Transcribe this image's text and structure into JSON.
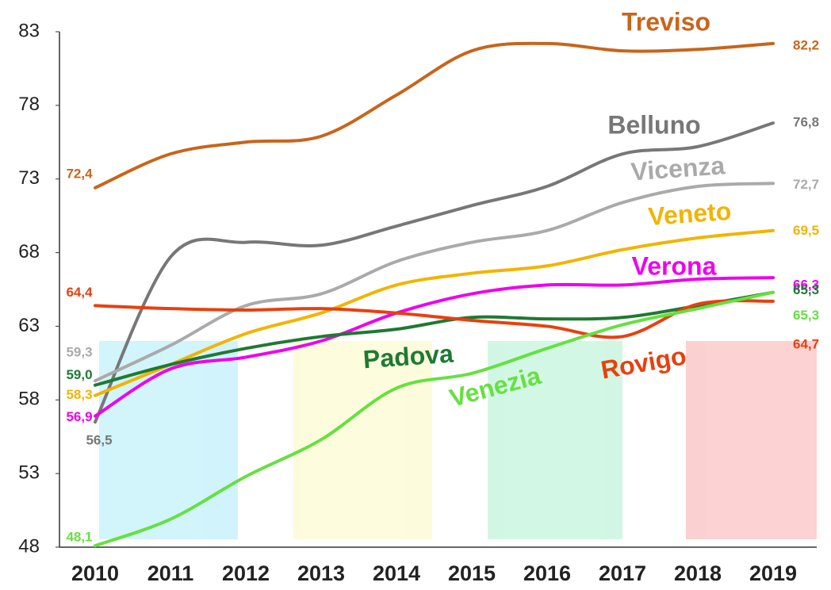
{
  "chart_data": {
    "type": "line",
    "categories": [
      "2010",
      "2011",
      "2012",
      "2013",
      "2014",
      "2015",
      "2016",
      "2017",
      "2018",
      "2019"
    ],
    "ylim": [
      48,
      83
    ],
    "yticks": [
      48,
      53,
      58,
      63,
      68,
      73,
      78,
      83
    ],
    "series": [
      {
        "name": "Treviso",
        "color": "#c8651b",
        "values": [
          72.4,
          74.7,
          75.5,
          75.9,
          78.7,
          81.7,
          82.2,
          81.7,
          81.8,
          82.2
        ],
        "value_labels": [
          "72,4",
          null,
          null,
          null,
          null,
          null,
          null,
          null,
          null,
          "82,2"
        ]
      },
      {
        "name": "Belluno",
        "color": "#777777",
        "values": [
          56.5,
          67.7,
          68.7,
          68.5,
          69.8,
          71.2,
          72.5,
          74.7,
          75.2,
          76.8
        ],
        "value_labels": [
          "56,5",
          null,
          null,
          null,
          null,
          null,
          null,
          null,
          null,
          "76,8"
        ]
      },
      {
        "name": "Vicenza",
        "color": "#aaaaaa",
        "values": [
          59.3,
          61.7,
          64.4,
          65.2,
          67.4,
          68.7,
          69.5,
          71.4,
          72.5,
          72.7
        ],
        "value_labels": [
          "59,3",
          null,
          null,
          null,
          null,
          null,
          null,
          null,
          null,
          "72,7"
        ]
      },
      {
        "name": "Veneto",
        "color": "#f2b400",
        "values": [
          58.3,
          60.4,
          62.5,
          63.9,
          65.8,
          66.6,
          67.1,
          68.2,
          69.0,
          69.5
        ],
        "value_labels": [
          "58,3",
          null,
          null,
          null,
          null,
          null,
          null,
          null,
          null,
          "69,5"
        ]
      },
      {
        "name": "Verona",
        "color": "#ee00ee",
        "values": [
          56.9,
          60.1,
          60.9,
          62.0,
          63.9,
          65.2,
          65.8,
          65.8,
          66.2,
          66.3
        ],
        "value_labels": [
          "56,9",
          null,
          null,
          null,
          null,
          null,
          null,
          null,
          null,
          "66,3"
        ]
      },
      {
        "name": "Padova",
        "color": "#1e7a32",
        "values": [
          59.0,
          60.4,
          61.5,
          62.3,
          62.8,
          63.6,
          63.5,
          63.6,
          64.4,
          65.3
        ],
        "value_labels": [
          "59,0",
          null,
          null,
          null,
          null,
          null,
          null,
          null,
          null,
          "65,3"
        ]
      },
      {
        "name": "Rovigo",
        "color": "#e8400f",
        "values": [
          64.4,
          64.2,
          64.1,
          64.2,
          63.9,
          63.4,
          63.0,
          62.3,
          64.5,
          64.7
        ],
        "value_labels": [
          "64,4",
          null,
          null,
          null,
          null,
          null,
          null,
          null,
          null,
          "64,7"
        ]
      },
      {
        "name": "Venezia",
        "color": "#66e040",
        "values": [
          48.1,
          49.9,
          52.8,
          55.3,
          58.8,
          59.8,
          61.5,
          63.1,
          64.2,
          65.3
        ],
        "value_labels": [
          "48,1",
          null,
          null,
          null,
          null,
          null,
          null,
          null,
          null,
          "65,3"
        ]
      }
    ]
  }
}
